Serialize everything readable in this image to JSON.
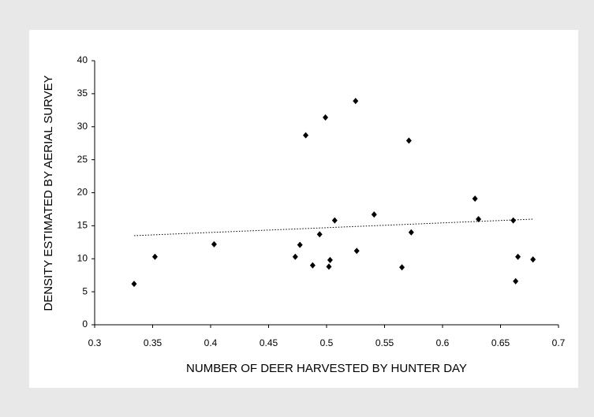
{
  "chart_data": {
    "type": "scatter",
    "x_label": "NUMBER OF DEER HARVESTED BY HUNTER DAY",
    "y_label": "DENSITY ESTIMATED BY AERIAL SURVEY",
    "color": "#000000",
    "x": [
      0.334,
      0.352,
      0.403,
      0.473,
      0.477,
      0.482,
      0.488,
      0.494,
      0.499,
      0.502,
      0.503,
      0.507,
      0.525,
      0.526,
      0.541,
      0.565,
      0.571,
      0.573,
      0.628,
      0.631,
      0.661,
      0.665,
      0.663,
      0.678
    ],
    "values": [
      6.2,
      10.3,
      12.2,
      10.3,
      12.1,
      28.7,
      9.0,
      13.7,
      31.4,
      8.8,
      9.8,
      15.8,
      33.9,
      11.2,
      16.7,
      8.7,
      27.9,
      14.0,
      19.1,
      16.0,
      15.8,
      10.3,
      6.6,
      9.9
    ],
    "trendline": {
      "x": [
        0.334,
        0.678
      ],
      "values": [
        13.5,
        16.0
      ]
    },
    "xlim": [
      0.3,
      0.7
    ],
    "xticks": [
      0.3,
      0.35,
      0.4,
      0.45,
      0.5,
      0.55,
      0.6,
      0.65,
      0.7
    ],
    "ylim": [
      0,
      40
    ],
    "yticks": [
      0,
      5,
      10,
      15,
      20,
      25,
      30,
      35,
      40
    ]
  }
}
